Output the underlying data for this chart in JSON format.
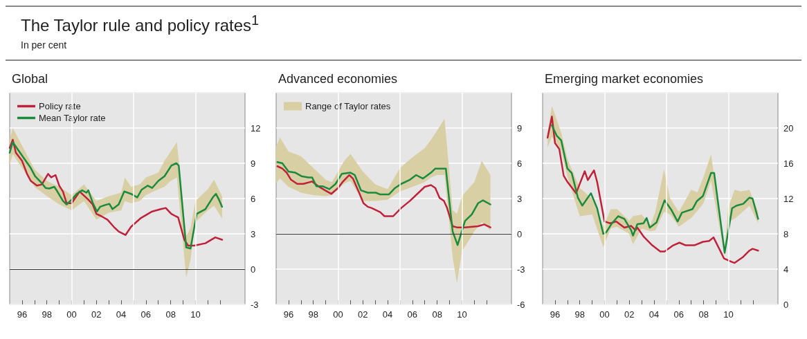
{
  "chart_data": [
    {
      "type": "line",
      "title": "Global",
      "annotations": [
        "The Taylor rule and policy rates$^{1}$",
        "In per cent"
      ],
      "legend": "top left",
      "grid": true,
      "xlim": [
        1995,
        2014
      ],
      "ylim": [
        -3,
        15
      ],
      "yticks": [
        -3,
        0,
        3,
        6,
        9,
        12
      ],
      "xticks": [
        {
          "value": 1996,
          "label": "96"
        },
        {
          "value": 1997,
          "label": null
        },
        {
          "value": 1998,
          "label": "98"
        },
        {
          "value": 1999,
          "label": null
        },
        {
          "value": 2000,
          "label": "00"
        },
        {
          "value": 2001,
          "label": null
        },
        {
          "value": 2002,
          "label": "02"
        },
        {
          "value": 2003,
          "label": null
        },
        {
          "value": 2004,
          "label": "04"
        },
        {
          "value": 2005,
          "label": null
        },
        {
          "value": 2006,
          "label": "06"
        },
        {
          "value": 2007,
          "label": null
        },
        {
          "value": 2008,
          "label": "08"
        },
        {
          "value": 2009,
          "label": null
        },
        {
          "value": 2010,
          "label": "10"
        },
        {
          "value": 2011,
          "label": null
        },
        {
          "value": 2012,
          "label": null
        }
      ],
      "ref_lines": [
        {
          "axis": "y",
          "value": 0,
          "color": "#333333"
        }
      ],
      "series": [
        {
          "type": "area",
          "color": "#d8cfa4",
          "x": [
            1995,
            1995.25,
            1996,
            1997,
            1998,
            1999,
            2000,
            2001,
            2002,
            2003,
            2004,
            2004.3,
            2004.8,
            2005.5,
            2006,
            2007,
            2007.5,
            2008,
            2008.5,
            2009.25,
            2009.6,
            2010,
            2011,
            2011.5,
            2012.15
          ],
          "values": [
            null,
            null,
            null,
            null,
            null,
            null,
            null,
            null,
            null,
            null,
            null,
            null,
            null,
            null,
            null,
            null,
            null,
            null,
            null,
            null,
            null,
            null,
            null,
            null,
            null
          ],
          "upper": [
            11,
            12,
            10.5,
            8.5,
            7.5,
            7,
            6.3,
            7.2,
            5.8,
            6.2,
            6.5,
            7.8,
            7.0,
            7.2,
            7.8,
            8.2,
            9.2,
            10.0,
            10.8,
            2.8,
            3.5,
            5.8,
            6.8,
            7.6,
            6.2
          ],
          "lower": [
            8.8,
            9.8,
            8.6,
            7.0,
            6.2,
            5.5,
            5.0,
            5.8,
            4.2,
            4.8,
            5.0,
            5.8,
            5.6,
            5.8,
            6.3,
            6.8,
            7.0,
            7.5,
            7.8,
            -0.7,
            0.8,
            4.0,
            5.0,
            5.4,
            4.3
          ]
        },
        {
          "name": "Policy rate",
          "color": "#c0213a",
          "x": [
            1995,
            1995.25,
            1995.5,
            1996,
            1996.4,
            1996.7,
            1997.2,
            1997.6,
            1998.1,
            1998.35,
            1998.7,
            1999,
            1999.3,
            1999.6,
            2000,
            2000.65,
            2001.35,
            2001.7,
            2002,
            2002.4,
            2002.9,
            2003.4,
            2003.8,
            2004.35,
            2004.8,
            2005.6,
            2006.5,
            2007.2,
            2007.6,
            2008.05,
            2008.4,
            2008.6,
            2009.1,
            2009.4,
            2009.9,
            2010.8,
            2011.6,
            2012.15
          ],
          "values": [
            10.3,
            11.0,
            9.9,
            9.2,
            8.1,
            7.5,
            7.1,
            7.2,
            8.1,
            7.8,
            8.0,
            7.1,
            6.6,
            5.6,
            5.6,
            6.6,
            5.9,
            5.5,
            4.7,
            4.5,
            4.2,
            3.6,
            3.2,
            2.9,
            3.6,
            4.35,
            4.9,
            5.1,
            5.2,
            4.7,
            4.5,
            4.4,
            2.5,
            2.0,
            2.0,
            2.2,
            2.7,
            2.5
          ]
        },
        {
          "name": "Mean Taylor rate",
          "color": "#1a8a3e",
          "x": [
            1995,
            1995.25,
            1995.7,
            1996.2,
            1996.7,
            1997.05,
            1997.6,
            1997.9,
            1998.2,
            1998.6,
            1998.85,
            1999.3,
            1999.6,
            2000,
            2000.4,
            2000.85,
            2001.2,
            2001.35,
            2001.7,
            2002.05,
            2002.3,
            2002.7,
            2003.05,
            2003.3,
            2003.8,
            2004.25,
            2004.8,
            2005.3,
            2005.65,
            2006.15,
            2006.5,
            2007,
            2007.5,
            2008.05,
            2008.45,
            2008.65,
            2009.25,
            2009.6,
            2010.1,
            2010.8,
            2011.4,
            2011.65,
            2011.9,
            2012.15
          ],
          "values": [
            9.9,
            10.8,
            10.1,
            9.35,
            8.6,
            7.9,
            7.3,
            6.9,
            6.85,
            7.0,
            6.6,
            5.8,
            5.5,
            5.9,
            6.4,
            6.7,
            6.5,
            6.7,
            5.65,
            4.9,
            5.3,
            5.45,
            5.55,
            5.1,
            5.5,
            6.6,
            6.4,
            6.1,
            6.75,
            7.1,
            6.9,
            7.5,
            7.9,
            8.8,
            9.0,
            8.8,
            1.85,
            1.75,
            4.7,
            5.1,
            6.1,
            6.4,
            5.9,
            5.3
          ]
        }
      ]
    },
    {
      "type": "line",
      "title": "Advanced economies",
      "legend": "top left",
      "grid": true,
      "xlim": [
        1995,
        2014
      ],
      "ylim": [
        -6,
        12
      ],
      "yticks": [
        -6,
        -3,
        0,
        3,
        6,
        9
      ],
      "xticks": [
        {
          "value": 1996,
          "label": "96"
        },
        {
          "value": 1997,
          "label": null
        },
        {
          "value": 1998,
          "label": "98"
        },
        {
          "value": 1999,
          "label": null
        },
        {
          "value": 2000,
          "label": "00"
        },
        {
          "value": 2001,
          "label": null
        },
        {
          "value": 2002,
          "label": "02"
        },
        {
          "value": 2003,
          "label": null
        },
        {
          "value": 2004,
          "label": "04"
        },
        {
          "value": 2005,
          "label": null
        },
        {
          "value": 2006,
          "label": "06"
        },
        {
          "value": 2007,
          "label": null
        },
        {
          "value": 2008,
          "label": "08"
        },
        {
          "value": 2009,
          "label": null
        },
        {
          "value": 2010,
          "label": "10"
        },
        {
          "value": 2011,
          "label": null
        },
        {
          "value": 2012,
          "label": null
        }
      ],
      "ref_lines": [
        {
          "axis": "y",
          "value": 0,
          "color": "#333333"
        }
      ],
      "series": [
        {
          "type": "area",
          "name": "Range of Taylor rates",
          "color": "#d8cfa4",
          "x": [
            1995,
            1995.3,
            1996,
            1997,
            1998,
            1999,
            1999.5,
            2000.5,
            2001,
            2002,
            2003,
            2004,
            2005,
            2006,
            2007,
            2007.5,
            2008,
            2008.6,
            2009.25,
            2009.6,
            2010,
            2011,
            2011.6,
            2012.3
          ],
          "values": [
            null,
            null,
            null,
            null,
            null,
            null,
            null,
            null,
            null,
            null,
            null,
            null,
            null,
            null,
            null,
            null,
            null,
            null,
            null,
            null,
            null,
            null,
            null,
            null
          ],
          "upper": [
            7.4,
            8.2,
            7.0,
            6.6,
            5.6,
            4.6,
            4.4,
            6.2,
            6.8,
            5.3,
            4.2,
            3.8,
            5.6,
            6.5,
            7.3,
            8.0,
            8.8,
            9.8,
            2.0,
            1.7,
            3.2,
            4.4,
            6.2,
            5.0
          ],
          "lower": [
            4.3,
            4.7,
            4.0,
            3.5,
            3.3,
            3.2,
            3.3,
            4.3,
            4.5,
            2.8,
            2.8,
            2.9,
            3.6,
            4.0,
            4.4,
            4.8,
            5.0,
            5.0,
            -2.0,
            -4.2,
            -1.5,
            0.2,
            1.0,
            0.3
          ]
        },
        {
          "color": "#c0213a",
          "x": [
            1995.1,
            1995.5,
            1995.85,
            1996.2,
            1996.7,
            1997.2,
            1997.9,
            1998.4,
            1998.95,
            1999.45,
            2000,
            2000.4,
            2000.9,
            2001.2,
            2001.7,
            2002.05,
            2002.4,
            2002.7,
            2003.4,
            2003.75,
            2004.45,
            2005.1,
            2005.8,
            2006.5,
            2007,
            2007.5,
            2007.85,
            2008.2,
            2008.55,
            2008.8,
            2009.25,
            2009.6,
            2010.25,
            2011.3,
            2011.8,
            2012.3
          ],
          "values": [
            5.75,
            5.55,
            5.2,
            4.6,
            4.25,
            4.25,
            4.45,
            4.05,
            3.7,
            3.4,
            3.9,
            4.45,
            5.0,
            4.7,
            3.5,
            2.6,
            2.3,
            2.2,
            1.85,
            1.5,
            1.5,
            2.2,
            2.8,
            3.5,
            4.0,
            4.15,
            3.9,
            3.05,
            2.8,
            2.2,
            0.65,
            0.55,
            0.55,
            0.65,
            0.8,
            0.55
          ]
        },
        {
          "color": "#1a8a3e",
          "x": [
            1995.1,
            1995.5,
            1996,
            1996.55,
            1997.05,
            1997.6,
            1997.9,
            1998.25,
            1998.75,
            1999.3,
            1999.8,
            2000.3,
            2001,
            2001.35,
            2001.85,
            2002.4,
            2003.05,
            2003.4,
            2004.1,
            2004.6,
            2005.1,
            2005.8,
            2006.3,
            2006.85,
            2007.5,
            2007.85,
            2008.7,
            2009.25,
            2009.65,
            2010.25,
            2010.8,
            2011.3,
            2011.7,
            2012.3
          ],
          "values": [
            6.1,
            6.0,
            5.3,
            5.2,
            4.9,
            4.8,
            4.8,
            4.05,
            4.05,
            3.8,
            4.25,
            5.1,
            5.2,
            5.0,
            3.7,
            3.5,
            3.5,
            3.35,
            3.35,
            3.9,
            4.25,
            4.6,
            5.0,
            4.7,
            5.2,
            5.55,
            5.55,
            0.2,
            -0.95,
            1.1,
            1.65,
            2.6,
            2.85,
            2.5
          ]
        }
      ]
    },
    {
      "type": "line",
      "title": "Emerging market economies",
      "grid": true,
      "xlim": [
        1995,
        2014
      ],
      "ylim": [
        0,
        24
      ],
      "yticks": [
        0,
        4,
        8,
        12,
        16,
        20
      ],
      "xticks": [
        {
          "value": 1996,
          "label": "96"
        },
        {
          "value": 1997,
          "label": null
        },
        {
          "value": 1998,
          "label": "98"
        },
        {
          "value": 1999,
          "label": null
        },
        {
          "value": 2000,
          "label": "00"
        },
        {
          "value": 2001,
          "label": null
        },
        {
          "value": 2002,
          "label": "02"
        },
        {
          "value": 2003,
          "label": null
        },
        {
          "value": 2004,
          "label": "04"
        },
        {
          "value": 2005,
          "label": null
        },
        {
          "value": 2006,
          "label": "06"
        },
        {
          "value": 2007,
          "label": null
        },
        {
          "value": 2008,
          "label": "08"
        },
        {
          "value": 2009,
          "label": null
        },
        {
          "value": 2010,
          "label": "10"
        },
        {
          "value": 2011,
          "label": null
        },
        {
          "value": 2012,
          "label": null
        }
      ],
      "series": [
        {
          "type": "area",
          "color": "#d8cfa4",
          "x": [
            1995.4,
            1995.75,
            1996.5,
            1997,
            1998,
            1999,
            1999.9,
            2000.5,
            2001,
            2002,
            2002.3,
            2003,
            2003.7,
            2004.1,
            2004.8,
            2005.3,
            2006,
            2007,
            2007.5,
            2008,
            2008.6,
            2009.7,
            2010,
            2010.5,
            2011,
            2011.7,
            2012.4
          ],
          "values": [
            null,
            null,
            null,
            null,
            null,
            null,
            null,
            null,
            null,
            null,
            null,
            null,
            null,
            null,
            null,
            null,
            null,
            null,
            null,
            null,
            null,
            null,
            null,
            null,
            null,
            null,
            null
          ],
          "upper": [
            19.5,
            22.5,
            19.5,
            16.5,
            13.2,
            12.0,
            8.8,
            10.8,
            10.8,
            9.5,
            10.0,
            10.2,
            9.0,
            10.5,
            15.3,
            12.0,
            10.5,
            13.0,
            12.7,
            14.5,
            17.0,
            6.4,
            11.0,
            13.0,
            12.8,
            13.0,
            10.5
          ],
          "lower": [
            17.8,
            19.0,
            17.5,
            14.5,
            10.0,
            10.2,
            6.5,
            8.6,
            8.8,
            8.0,
            6.8,
            8.6,
            8.3,
            8.4,
            10.5,
            10.2,
            8.8,
            9.8,
            10.6,
            11.5,
            14.0,
            5.5,
            9.4,
            9.7,
            10.3,
            11.2,
            9.2
          ]
        },
        {
          "color": "#c0213a",
          "x": [
            1995.4,
            1995.75,
            1996,
            1996.35,
            1996.7,
            1997,
            1997.7,
            1998.4,
            1998.65,
            1999.15,
            1999.4,
            2000,
            2000.45,
            2000.95,
            2001.6,
            2002.15,
            2002.5,
            2002.65,
            2003.15,
            2003.85,
            2004.5,
            2004.85,
            2005.55,
            2006.05,
            2006.55,
            2007.25,
            2007.95,
            2008.45,
            2008.8,
            2009.3,
            2009.65,
            2010.15,
            2010.5,
            2011.2,
            2011.7,
            2011.95,
            2012.4
          ],
          "values": [
            18.9,
            21.3,
            18.3,
            17.6,
            14.6,
            13.9,
            12.6,
            15.1,
            14.1,
            15.2,
            13.9,
            9.4,
            9.2,
            9.4,
            8.7,
            8.9,
            8.4,
            8.7,
            7.7,
            6.7,
            6.0,
            6.0,
            6.7,
            7.0,
            6.7,
            6.7,
            7.1,
            7.2,
            7.6,
            6.2,
            5.2,
            4.9,
            4.7,
            5.4,
            6.1,
            6.3,
            6.1
          ]
        },
        {
          "color": "#1a8a3e",
          "x": [
            1995.75,
            1996.15,
            1996.5,
            1997,
            1997.35,
            1997.85,
            1998.2,
            1998.9,
            1999.4,
            1999.9,
            2000.15,
            2000.6,
            2001.1,
            2001.6,
            2002.15,
            2002.3,
            2002.65,
            2003.15,
            2003.4,
            2003.65,
            2004.2,
            2004.85,
            2005.4,
            2005.9,
            2006.25,
            2007.1,
            2007.45,
            2007.95,
            2008.6,
            2008.85,
            2009.7,
            2010.3,
            2010.65,
            2011.2,
            2011.7,
            2011.95,
            2012.4
          ],
          "values": [
            20.3,
            19.1,
            18.6,
            15.4,
            14.9,
            12.1,
            11.2,
            12.6,
            10.9,
            8.0,
            8.2,
            9.2,
            10.0,
            9.7,
            8.4,
            7.8,
            9.1,
            9.2,
            9.8,
            8.7,
            9.3,
            11.8,
            10.7,
            9.4,
            10.4,
            10.8,
            11.7,
            12.3,
            14.9,
            14.9,
            5.85,
            10.9,
            11.2,
            11.4,
            12.1,
            12.0,
            9.7
          ]
        }
      ]
    }
  ]
}
